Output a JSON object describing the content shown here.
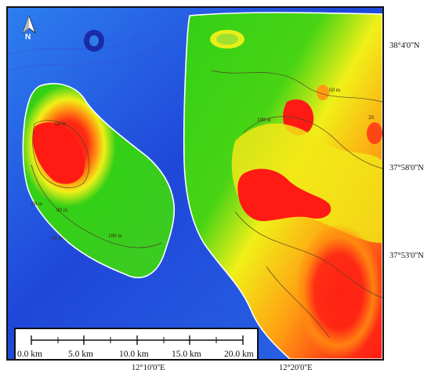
{
  "north_arrow": {
    "letter": "N"
  },
  "latitude_labels": [
    "38°4'0''N",
    "37°58'0''N",
    "37°53'0''N"
  ],
  "longitude_labels": [
    "12°10'0''E",
    "12°20'0''E"
  ],
  "scale_bar": {
    "unit": "km",
    "ticks": [
      "0.0 km",
      "5.0 km",
      "10.0 km",
      "15.0 km",
      "20.0 km"
    ]
  },
  "contour_labels": [
    "60 m",
    "60 m",
    "80 m",
    "100 m",
    "60 m",
    "100 m",
    "20",
    "60 m"
  ],
  "colors": {
    "deep_water": "#1f3fd6",
    "shallow_water": "#2a7be8",
    "lowland_green": "#33d016",
    "mid_yellow": "#f0f018",
    "high_orange": "#ff8a10",
    "peak_red": "#ff1a14",
    "coastline": "#ffffff",
    "contour": "#5a4424"
  }
}
